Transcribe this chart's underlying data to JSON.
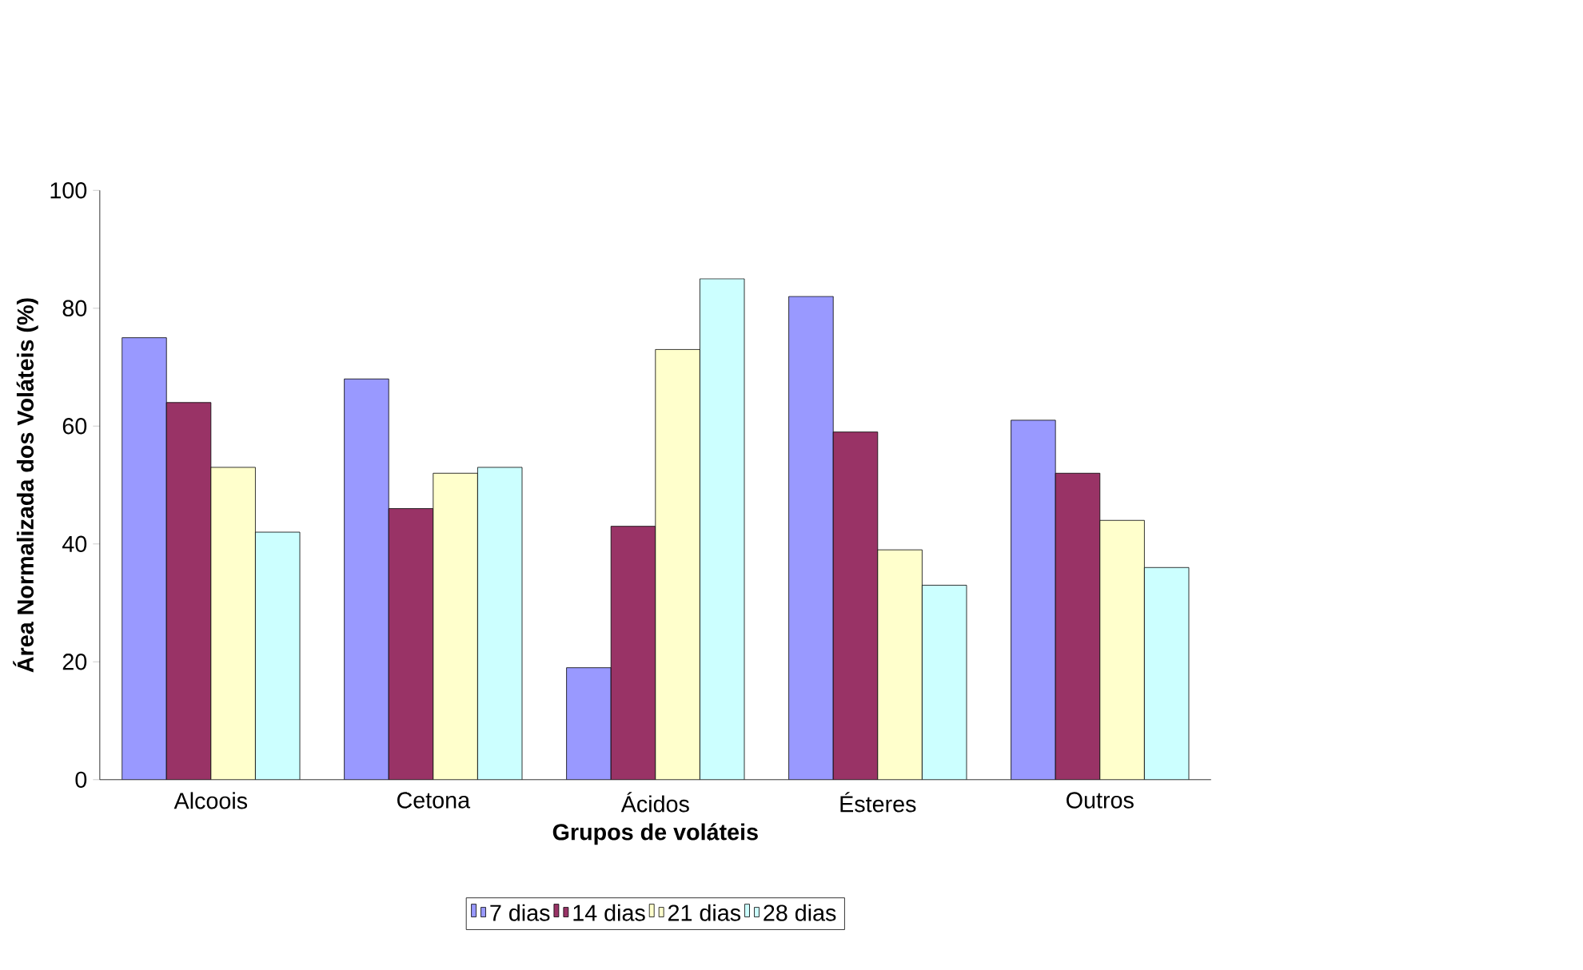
{
  "chart_data": {
    "type": "bar",
    "xlabel": "Grupos de voláteis",
    "ylabel": "Área Normalizada dos Voláteis (%)",
    "categories": [
      "Alcoois",
      "Cetona",
      "Ácidos",
      "Ésteres",
      "Outros"
    ],
    "series": [
      {
        "name": "7 dias",
        "color": "#9999ff",
        "values": [
          75,
          68,
          19,
          82,
          61
        ]
      },
      {
        "name": "14 dias",
        "color": "#993366",
        "values": [
          64,
          46,
          43,
          59,
          52
        ]
      },
      {
        "name": "21 dias",
        "color": "#ffffcc",
        "values": [
          53,
          52,
          73,
          39,
          44
        ]
      },
      {
        "name": "28 dias",
        "color": "#ccffff",
        "values": [
          42,
          53,
          85,
          33,
          36
        ]
      }
    ],
    "ylim": [
      0,
      100
    ],
    "yticks": [
      0,
      20,
      40,
      60,
      80,
      100
    ],
    "legend": "bottom",
    "grid": false
  }
}
